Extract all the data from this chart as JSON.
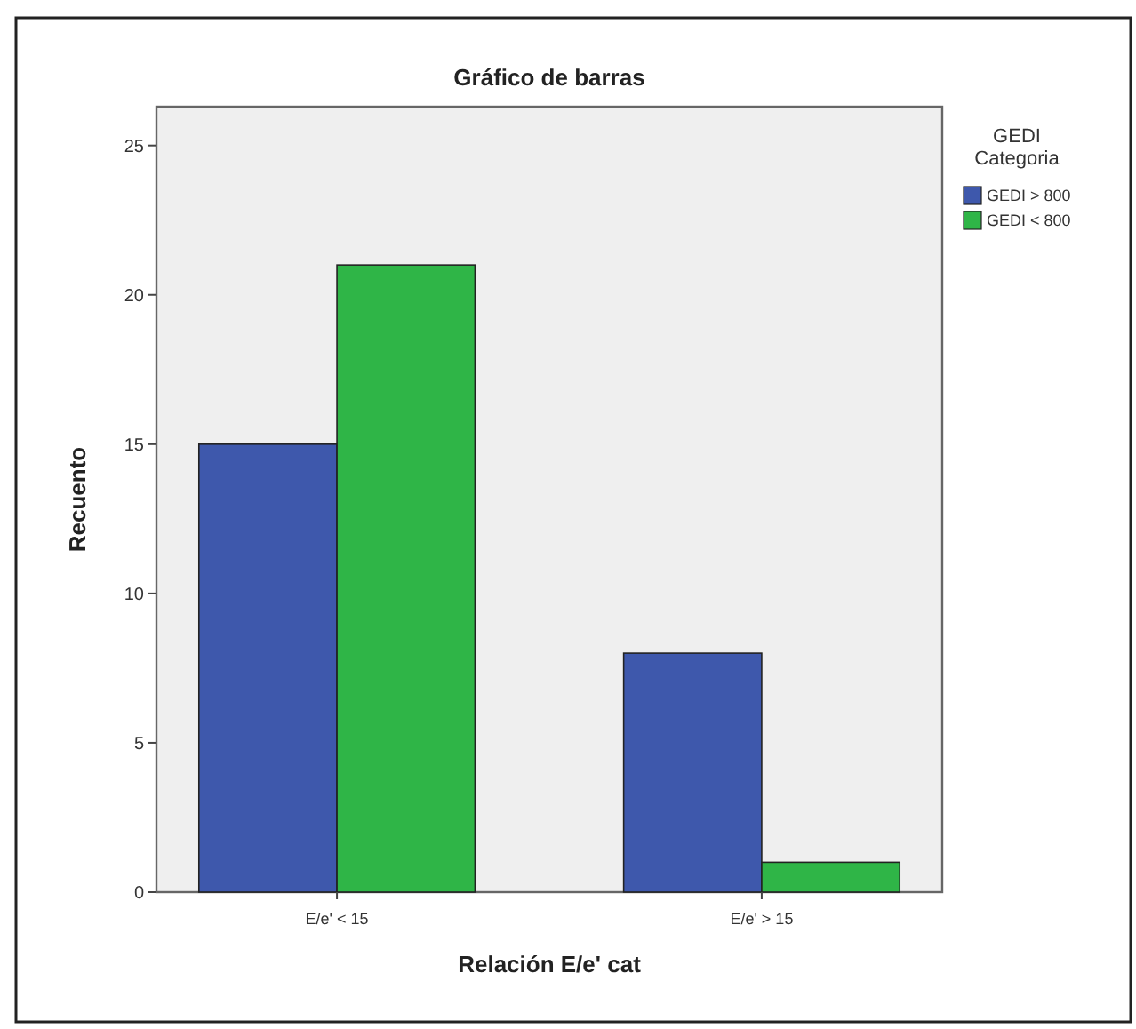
{
  "chart_data": {
    "type": "bar",
    "title": "Gráfico de barras",
    "xlabel": "Relación E/e' cat",
    "ylabel": "Recuento",
    "legend_title": "GEDI Categoria",
    "categories": [
      "E/e' < 15",
      "E/e' > 15"
    ],
    "series": [
      {
        "name": "GEDI > 800",
        "color": "#3e58ac",
        "values": [
          15,
          8
        ]
      },
      {
        "name": "GEDI < 800",
        "color": "#2fb547",
        "values": [
          21,
          1
        ]
      }
    ],
    "ylim": [
      0,
      26.3
    ],
    "yticks": [
      0,
      5,
      10,
      15,
      20,
      25
    ],
    "grid": false,
    "legend": "right"
  }
}
